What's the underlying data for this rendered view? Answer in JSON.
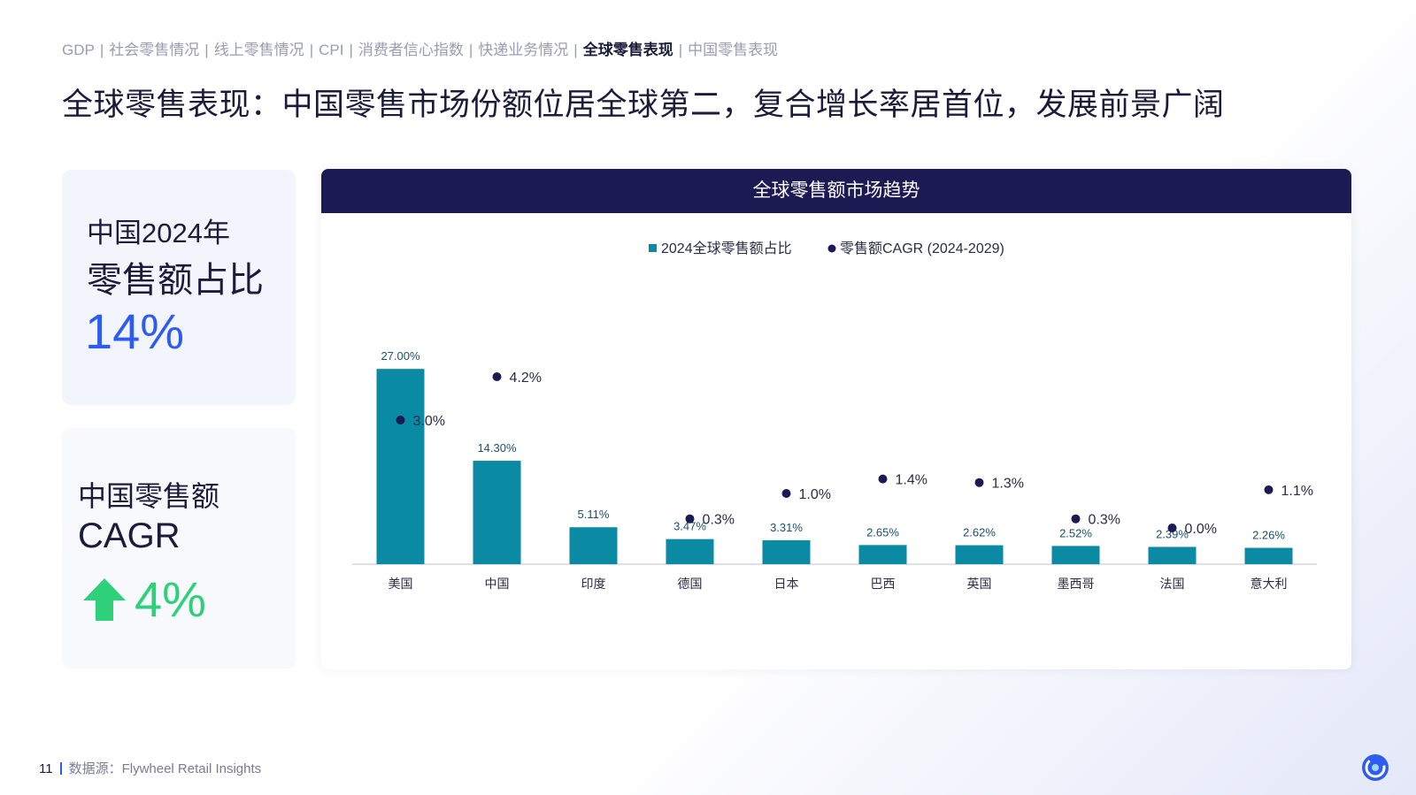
{
  "nav": {
    "items": [
      {
        "label": "GDP"
      },
      {
        "label": "社会零售情况"
      },
      {
        "label": "线上零售情况"
      },
      {
        "label": "CPI"
      },
      {
        "label": "消费者信心指数"
      },
      {
        "label": "快递业务情况"
      },
      {
        "label": "全球零售表现",
        "active": true
      },
      {
        "label": "中国零售表现"
      }
    ],
    "separator": "|"
  },
  "page_title": "全球零售表现：中国零售市场份额位居全球第二，复合增长率居首位，发展前景广阔",
  "card_share": {
    "line1": "中国2024年",
    "line2": "零售额占比",
    "value": "14%"
  },
  "card_cagr": {
    "line1": "中国零售额",
    "line2": "CAGR",
    "value": "4%",
    "icon": "arrow-up-icon",
    "value_color": "#2fd07a"
  },
  "chart_header": "全球零售额市场趋势",
  "chart_data": {
    "type": "bar",
    "title": "全球零售额市场趋势",
    "categories": [
      "美国",
      "中国",
      "印度",
      "德国",
      "日本",
      "巴西",
      "英国",
      "墨西哥",
      "法国",
      "意大利"
    ],
    "series": [
      {
        "name": "2024全球零售额占比",
        "type": "bar",
        "color": "#0a8aa3",
        "values": [
          27.0,
          14.3,
          5.11,
          3.47,
          3.31,
          2.65,
          2.62,
          2.52,
          2.39,
          2.26
        ],
        "labels": [
          "27.00%",
          "14.30%",
          "5.11%",
          "3.47%",
          "3.31%",
          "2.65%",
          "2.62%",
          "2.52%",
          "2.39%",
          "2.26%"
        ]
      },
      {
        "name": "零售额CAGR (2024-2029)",
        "type": "scatter",
        "color": "#1c1a52",
        "values": [
          3.0,
          4.2,
          null,
          0.3,
          1.0,
          1.4,
          1.3,
          0.3,
          0.0,
          1.1
        ],
        "labels": [
          "3.0%",
          "4.2%",
          "",
          "0.3%",
          "1.0%",
          "1.4%",
          "1.3%",
          "0.3%",
          "0.0%",
          "1.1%"
        ]
      }
    ],
    "legend_position": "top-center",
    "grid": false,
    "ylim": [
      0,
      28
    ]
  },
  "footer": {
    "page_number": "11",
    "source": "数据源：Flywheel  Retail Insights"
  },
  "colors": {
    "accent_blue": "#2f5cf0",
    "navy": "#1c1a52",
    "teal": "#0a8aa3",
    "green": "#2fd07a"
  }
}
